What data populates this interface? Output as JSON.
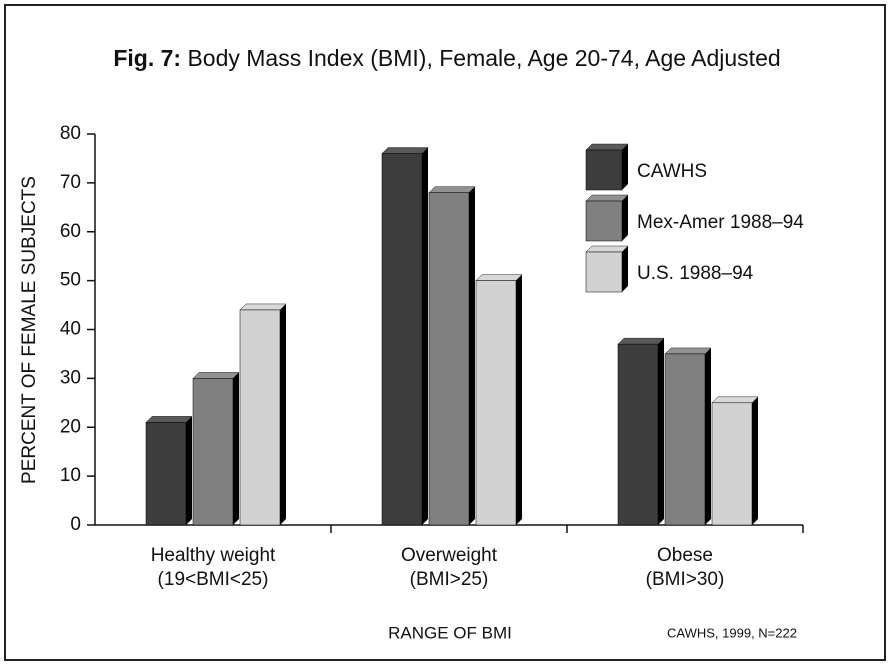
{
  "chart_data": {
    "type": "bar",
    "figure_label": "Fig. 7:",
    "title": "Body Mass Index (BMI), Female, Age 20-74, Age Adjusted",
    "y_label": "PERCENT OF FEMALE SUBJECTS",
    "x_label": "RANGE OF BMI",
    "source": "CAWHS, 1999, N=222",
    "categories": [
      "Healthy weight",
      "Overweight",
      "Obese"
    ],
    "category_notes": [
      "(19<BMI<25)",
      "(BMI>25)",
      "(BMI>30)"
    ],
    "series": [
      {
        "name": "CAWHS",
        "color": "#3d3d3d",
        "values": [
          21,
          76,
          37
        ]
      },
      {
        "name": "Mex-Amer 1988–94",
        "color": "#808080",
        "values": [
          30,
          68,
          35
        ]
      },
      {
        "name": "U.S. 1988–94",
        "color": "#d2d2d2",
        "values": [
          44,
          50,
          25
        ]
      }
    ],
    "ylim": [
      0,
      80
    ],
    "yticks": [
      0,
      10,
      20,
      30,
      40,
      50,
      60,
      70,
      80
    ],
    "legend": "upper right"
  }
}
